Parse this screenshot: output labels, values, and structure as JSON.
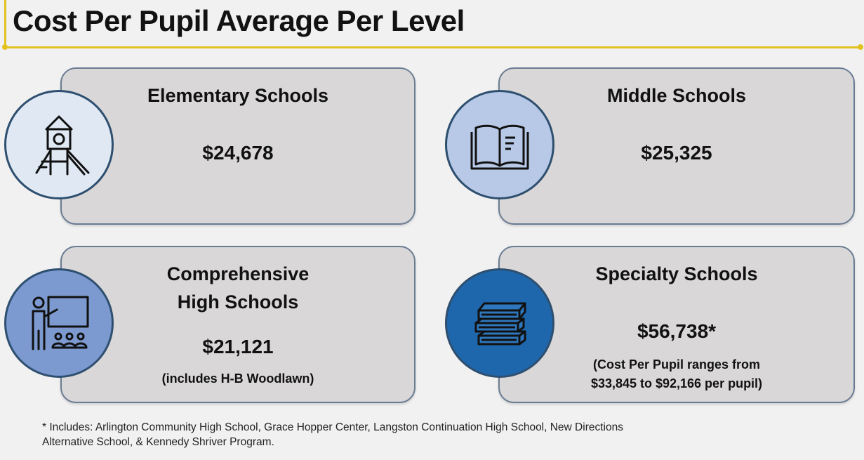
{
  "header": {
    "title": "Cost Per Pupil Average Per Level"
  },
  "cards": [
    {
      "title": "Elementary Schools",
      "amount": "$24,678",
      "icon": "playground-slide-icon"
    },
    {
      "title": "Middle Schools",
      "amount": "$25,325",
      "icon": "open-book-icon"
    },
    {
      "title_line1": "Comprehensive",
      "title_line2": "High Schools",
      "amount": "$21,121",
      "note": "(includes H-B Woodlawn)",
      "icon": "teacher-classroom-icon"
    },
    {
      "title": "Specialty Schools",
      "amount": "$56,738*",
      "note_line1": "(Cost Per Pupil ranges from",
      "note_line2": "$33,845 to $92,166 per pupil)",
      "icon": "book-stack-icon"
    }
  ],
  "footnote": {
    "line1": "* Includes:  Arlington Community High School, Grace Hopper Center, Langston Continuation High School, New Directions",
    "line2": "Alternative School, & Kennedy Shriver Program."
  },
  "colors": {
    "accent_line": "#e3c11f",
    "card_bg": "#d9d7d8",
    "card_border": "#6a7c93",
    "circle_elementary": "#dfe8f3",
    "circle_middle": "#b7c9e6",
    "circle_high": "#7c99d0",
    "circle_specialty": "#1f67ad"
  }
}
